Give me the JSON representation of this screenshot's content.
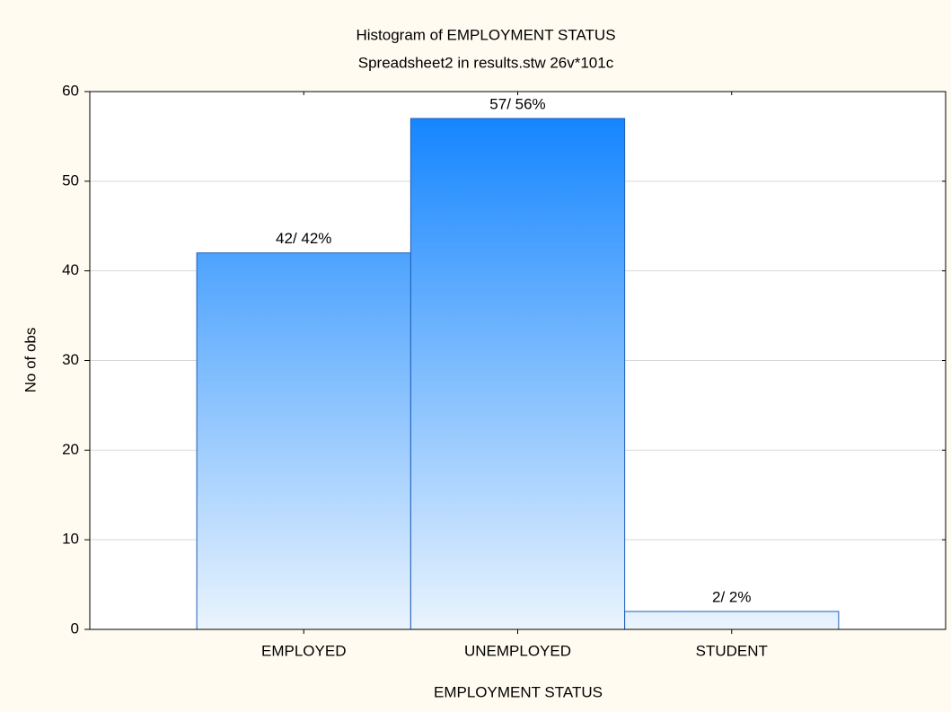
{
  "chart_data": {
    "type": "bar",
    "title": "Histogram of EMPLOYMENT STATUS",
    "subtitle": "Spreadsheet2 in results.stw 26v*101c",
    "xlabel": "EMPLOYMENT STATUS",
    "ylabel": "No of obs",
    "categories": [
      "EMPLOYED",
      "UNEMPLOYED",
      "STUDENT"
    ],
    "values": [
      42,
      57,
      2
    ],
    "value_labels": [
      "42/ 42%",
      "57/ 56%",
      "2/ 2%"
    ],
    "color": "#0a80ff",
    "ylim": [
      0,
      60
    ],
    "yticks": [
      0,
      10,
      20,
      30,
      40,
      50,
      60
    ],
    "grid": true
  }
}
